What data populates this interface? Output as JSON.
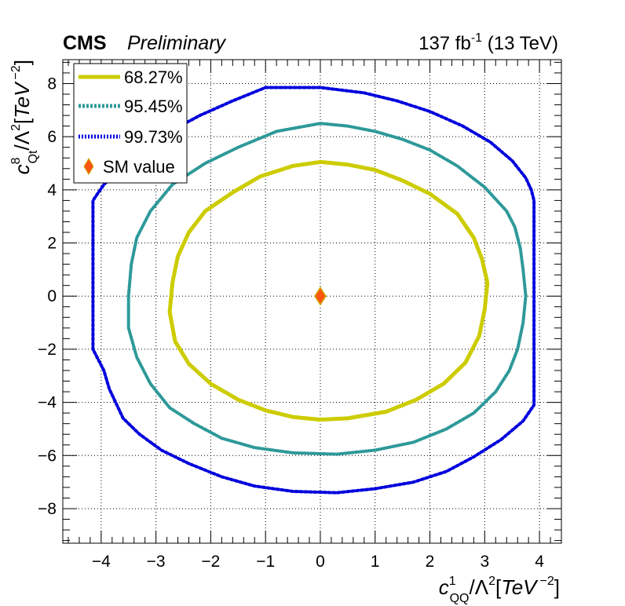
{
  "header": {
    "experiment": "CMS",
    "status": "Preliminary",
    "lumi": "137 fb",
    "lumi_sup": "-1",
    "energy": " (13 TeV)"
  },
  "chart_data": {
    "type": "line",
    "xlim": [
      -4.7,
      4.4
    ],
    "ylim": [
      -9.3,
      8.9
    ],
    "x_ticks": [
      -4,
      -3,
      -2,
      -1,
      0,
      1,
      2,
      3,
      4
    ],
    "y_ticks": [
      -8,
      -6,
      -4,
      -2,
      0,
      2,
      4,
      6,
      8
    ],
    "grid": true,
    "legend_position": "top-left",
    "xlabel": {
      "c": "c",
      "sup": "1",
      "sub": "QQ",
      "slash": "/Λ",
      "sq": "2",
      "open": "[",
      "unit": "TeV",
      "exp": "−2",
      "close": "]"
    },
    "ylabel": {
      "c": "c",
      "sup": "8",
      "sub": "Qt",
      "slash": "/Λ",
      "sq": "2",
      "open": "[",
      "unit": "TeV",
      "exp": "−2",
      "close": "]"
    },
    "series": [
      {
        "name": "68.27%",
        "color": "#cccc00",
        "style": "solid",
        "points": [
          [
            0,
            5.05
          ],
          [
            0.5,
            4.95
          ],
          [
            1.0,
            4.75
          ],
          [
            1.5,
            4.35
          ],
          [
            2.0,
            3.85
          ],
          [
            2.5,
            3.1
          ],
          [
            2.8,
            2.2
          ],
          [
            2.95,
            1.4
          ],
          [
            3.05,
            0.5
          ],
          [
            3.0,
            -0.5
          ],
          [
            2.9,
            -1.5
          ],
          [
            2.65,
            -2.5
          ],
          [
            2.25,
            -3.3
          ],
          [
            1.75,
            -3.9
          ],
          [
            1.2,
            -4.35
          ],
          [
            0.5,
            -4.6
          ],
          [
            0,
            -4.65
          ],
          [
            -0.5,
            -4.55
          ],
          [
            -1.0,
            -4.3
          ],
          [
            -1.5,
            -3.9
          ],
          [
            -2.0,
            -3.3
          ],
          [
            -2.4,
            -2.55
          ],
          [
            -2.65,
            -1.7
          ],
          [
            -2.75,
            -0.6
          ],
          [
            -2.7,
            0.5
          ],
          [
            -2.6,
            1.5
          ],
          [
            -2.4,
            2.4
          ],
          [
            -2.1,
            3.2
          ],
          [
            -1.6,
            3.9
          ],
          [
            -1.1,
            4.5
          ],
          [
            -0.5,
            4.9
          ],
          [
            0,
            5.05
          ]
        ]
      },
      {
        "name": "95.45%",
        "color": "#2e9999",
        "style": "dotted",
        "points": [
          [
            0,
            6.5
          ],
          [
            0.5,
            6.4
          ],
          [
            1.0,
            6.2
          ],
          [
            1.5,
            5.9
          ],
          [
            2.0,
            5.5
          ],
          [
            2.5,
            4.9
          ],
          [
            3.0,
            4.1
          ],
          [
            3.4,
            3.2
          ],
          [
            3.55,
            2.6
          ],
          [
            3.65,
            1.8
          ],
          [
            3.7,
            1.0
          ],
          [
            3.75,
            0
          ],
          [
            3.7,
            -1.0
          ],
          [
            3.6,
            -2.0
          ],
          [
            3.45,
            -2.8
          ],
          [
            3.2,
            -3.6
          ],
          [
            2.8,
            -4.4
          ],
          [
            2.3,
            -5.0
          ],
          [
            1.7,
            -5.5
          ],
          [
            1.0,
            -5.8
          ],
          [
            0.3,
            -5.95
          ],
          [
            -0.5,
            -5.9
          ],
          [
            -1.2,
            -5.7
          ],
          [
            -1.8,
            -5.35
          ],
          [
            -2.3,
            -4.8
          ],
          [
            -2.75,
            -4.2
          ],
          [
            -3.1,
            -3.3
          ],
          [
            -3.35,
            -2.3
          ],
          [
            -3.5,
            -1.2
          ],
          [
            -3.5,
            0
          ],
          [
            -3.45,
            1.2
          ],
          [
            -3.35,
            2.2
          ],
          [
            -3.1,
            3.2
          ],
          [
            -2.7,
            4.2
          ],
          [
            -2.1,
            5.0
          ],
          [
            -1.5,
            5.6
          ],
          [
            -0.8,
            6.2
          ],
          [
            0,
            6.5
          ]
        ]
      },
      {
        "name": "99.73%",
        "color": "#0000dd",
        "style": "dashed",
        "points": [
          [
            -1.0,
            7.85
          ],
          [
            0,
            7.85
          ],
          [
            0.8,
            7.65
          ],
          [
            1.4,
            7.35
          ],
          [
            2.0,
            6.95
          ],
          [
            2.6,
            6.4
          ],
          [
            3.1,
            5.8
          ],
          [
            3.5,
            5.1
          ],
          [
            3.75,
            4.45
          ],
          [
            3.85,
            4.0
          ],
          [
            3.9,
            3.6
          ],
          [
            3.9,
            2.0
          ],
          [
            3.9,
            0
          ],
          [
            3.9,
            -2.0
          ],
          [
            3.9,
            -4.1
          ],
          [
            3.7,
            -4.7
          ],
          [
            3.3,
            -5.4
          ],
          [
            2.8,
            -6.05
          ],
          [
            2.3,
            -6.6
          ],
          [
            1.7,
            -7.0
          ],
          [
            1.0,
            -7.25
          ],
          [
            0.3,
            -7.4
          ],
          [
            -0.5,
            -7.35
          ],
          [
            -1.2,
            -7.15
          ],
          [
            -1.8,
            -6.8
          ],
          [
            -2.4,
            -6.3
          ],
          [
            -2.9,
            -5.8
          ],
          [
            -3.3,
            -5.2
          ],
          [
            -3.6,
            -4.6
          ],
          [
            -3.85,
            -3.5
          ],
          [
            -3.95,
            -2.8
          ],
          [
            -4.15,
            -2.0
          ],
          [
            -4.15,
            0
          ],
          [
            -4.15,
            2.0
          ],
          [
            -4.15,
            3.6
          ],
          [
            -3.95,
            4.2
          ],
          [
            -3.6,
            4.9
          ],
          [
            -3.2,
            5.6
          ],
          [
            -2.7,
            6.25
          ],
          [
            -2.2,
            6.8
          ],
          [
            -1.6,
            7.35
          ],
          [
            -1.0,
            7.85
          ]
        ]
      }
    ],
    "markers": [
      {
        "name": "SM value",
        "x": 0,
        "y": 0,
        "color": "#ff5511",
        "edge": "#ccaa00"
      }
    ]
  }
}
